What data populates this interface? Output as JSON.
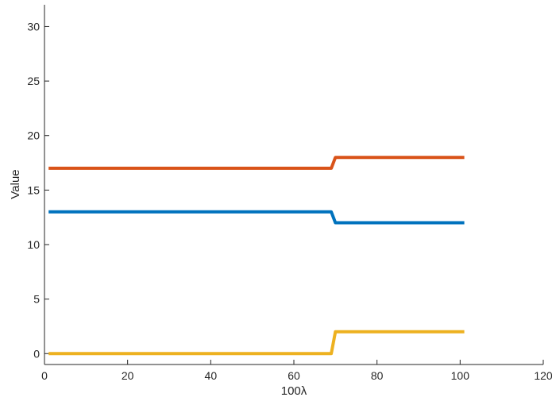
{
  "chart_data": {
    "type": "line",
    "title": "",
    "xlabel": "100λ",
    "ylabel": "Value",
    "xlim": [
      0,
      120
    ],
    "ylim": [
      -1,
      32
    ],
    "xticks": [
      0,
      20,
      40,
      60,
      80,
      100,
      120
    ],
    "yticks": [
      0,
      5,
      10,
      15,
      20,
      25,
      30
    ],
    "xtick_labels": [
      "0",
      "20",
      "40",
      "60",
      "80",
      "100",
      "120"
    ],
    "ytick_labels": [
      "0",
      "5",
      "10",
      "15",
      "20",
      "25",
      "30"
    ],
    "grid": false,
    "legend": "none",
    "series": [
      {
        "color": "#0072BD",
        "x": [
          1,
          69,
          70,
          101
        ],
        "y": [
          13,
          13,
          12,
          12
        ]
      },
      {
        "color": "#D95319",
        "x": [
          1,
          69,
          70,
          101
        ],
        "y": [
          17,
          17,
          18,
          18
        ]
      },
      {
        "color": "#EDB120",
        "x": [
          1,
          69,
          70,
          101
        ],
        "y": [
          0,
          0,
          2,
          2
        ]
      }
    ]
  }
}
